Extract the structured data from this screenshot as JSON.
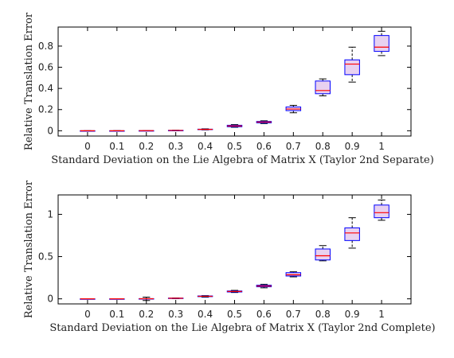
{
  "chart_data": [
    {
      "type": "box",
      "title": "",
      "xlabel": "Standard Deviation on the Lie Algebra of Matrix X (Taylor 2nd Separate)",
      "ylabel": "Relative Translation Error",
      "categories": [
        "0",
        "0.1",
        "0.2",
        "0.3",
        "0.4",
        "0.5",
        "0.6",
        "0.7",
        "0.8",
        "0.9",
        "1"
      ],
      "ylim": [
        -0.05,
        0.98
      ],
      "yticks": [
        0,
        0.2,
        0.4,
        0.6,
        0.8
      ],
      "ytick_labels": [
        "0",
        "0.2",
        "0.4",
        "0.6",
        "0.8"
      ],
      "boxes": [
        {
          "whisker_low": 0.0,
          "q1": 0.0,
          "median": 0.0,
          "q3": 0.0,
          "whisker_high": 0.0
        },
        {
          "whisker_low": 0.0,
          "q1": 0.0,
          "median": 0.0,
          "q3": 0.0,
          "whisker_high": 0.001
        },
        {
          "whisker_low": 0.0,
          "q1": 0.001,
          "median": 0.001,
          "q3": 0.001,
          "whisker_high": 0.002
        },
        {
          "whisker_low": 0.001,
          "q1": 0.002,
          "median": 0.003,
          "q3": 0.004,
          "whisker_high": 0.005
        },
        {
          "whisker_low": 0.008,
          "q1": 0.011,
          "median": 0.013,
          "q3": 0.015,
          "whisker_high": 0.018
        },
        {
          "whisker_low": 0.033,
          "q1": 0.038,
          "median": 0.045,
          "q3": 0.052,
          "whisker_high": 0.058
        },
        {
          "whisker_low": 0.068,
          "q1": 0.075,
          "median": 0.082,
          "q3": 0.088,
          "whisker_high": 0.094
        },
        {
          "whisker_low": 0.17,
          "q1": 0.19,
          "median": 0.205,
          "q3": 0.225,
          "whisker_high": 0.24
        },
        {
          "whisker_low": 0.33,
          "q1": 0.35,
          "median": 0.38,
          "q3": 0.47,
          "whisker_high": 0.49
        },
        {
          "whisker_low": 0.46,
          "q1": 0.53,
          "median": 0.63,
          "q3": 0.67,
          "whisker_high": 0.79
        },
        {
          "whisker_low": 0.71,
          "q1": 0.75,
          "median": 0.79,
          "q3": 0.9,
          "whisker_high": 0.94
        }
      ]
    },
    {
      "type": "box",
      "title": "",
      "xlabel": "Standard Deviation on the Lie Algebra of Matrix X (Taylor 2nd Complete)",
      "ylabel": "Relative Translation Error",
      "categories": [
        "0",
        "0.1",
        "0.2",
        "0.3",
        "0.4",
        "0.5",
        "0.6",
        "0.7",
        "0.8",
        "0.9",
        "1"
      ],
      "ylim": [
        -0.06,
        1.23
      ],
      "yticks": [
        0,
        0.5,
        1
      ],
      "ytick_labels": [
        "0",
        "0.5",
        "1"
      ],
      "boxes": [
        {
          "whisker_low": 0.0,
          "q1": 0.0,
          "median": 0.0,
          "q3": 0.0,
          "whisker_high": 0.0
        },
        {
          "whisker_low": 0.0,
          "q1": 0.0,
          "median": 0.0,
          "q3": 0.0,
          "whisker_high": 0.001
        },
        {
          "whisker_low": -0.02,
          "q1": 0.0,
          "median": 0.001,
          "q3": 0.002,
          "whisker_high": 0.02
        },
        {
          "whisker_low": 0.003,
          "q1": 0.005,
          "median": 0.007,
          "q3": 0.009,
          "whisker_high": 0.011
        },
        {
          "whisker_low": 0.02,
          "q1": 0.026,
          "median": 0.03,
          "q3": 0.034,
          "whisker_high": 0.038
        },
        {
          "whisker_low": 0.075,
          "q1": 0.081,
          "median": 0.087,
          "q3": 0.093,
          "whisker_high": 0.1
        },
        {
          "whisker_low": 0.13,
          "q1": 0.143,
          "median": 0.152,
          "q3": 0.162,
          "whisker_high": 0.172
        },
        {
          "whisker_low": 0.26,
          "q1": 0.27,
          "median": 0.285,
          "q3": 0.31,
          "whisker_high": 0.32
        },
        {
          "whisker_low": 0.45,
          "q1": 0.46,
          "median": 0.51,
          "q3": 0.59,
          "whisker_high": 0.63
        },
        {
          "whisker_low": 0.6,
          "q1": 0.69,
          "median": 0.78,
          "q3": 0.84,
          "whisker_high": 0.96
        },
        {
          "whisker_low": 0.93,
          "q1": 0.96,
          "median": 1.02,
          "q3": 1.11,
          "whisker_high": 1.17
        }
      ]
    }
  ],
  "colors": {
    "box": "#0000ff",
    "box_fill": "#cc99dd",
    "median": "#ff0000",
    "whisker": "#000000",
    "axis": "#000000"
  }
}
